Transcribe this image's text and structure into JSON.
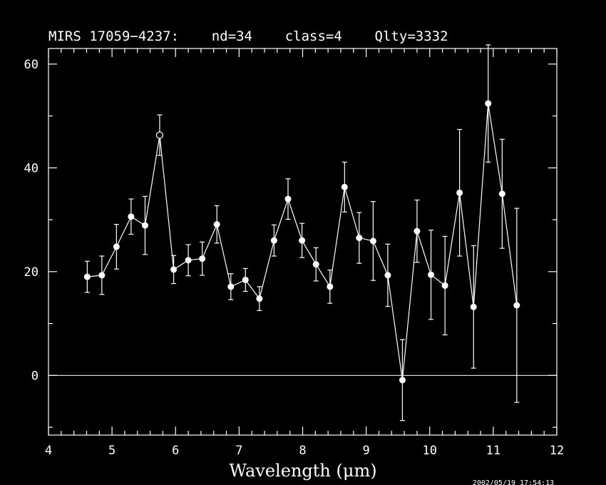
{
  "chart_data": {
    "type": "scatter",
    "title": "MIRS 17059−4237:    nd=34    class=4    Qlty=3332",
    "xlabel": "Wavelength (μm)",
    "ylabel": "",
    "xlim": [
      4,
      12
    ],
    "ylim": [
      -11.5,
      63
    ],
    "x_ticks": [
      4,
      5,
      6,
      7,
      8,
      9,
      10,
      11,
      12
    ],
    "y_ticks": [
      0,
      20,
      40,
      60
    ],
    "zero_line": true,
    "grid": false,
    "timestamp": "2002/05/19 17:54:13",
    "colors": {
      "background": "#000000",
      "foreground": "#ffffff"
    },
    "series": [
      {
        "points": [
          {
            "x": 4.61,
            "y": 19.0,
            "err": 3.0
          },
          {
            "x": 4.84,
            "y": 19.3,
            "err": 3.7
          },
          {
            "x": 5.07,
            "y": 24.8,
            "err": 4.3
          },
          {
            "x": 5.3,
            "y": 30.6,
            "err": 3.4
          },
          {
            "x": 5.52,
            "y": 28.9,
            "err": 5.6
          },
          {
            "x": 5.75,
            "y": 46.3,
            "err": 3.9,
            "hollow": true
          },
          {
            "x": 5.97,
            "y": 20.4,
            "err": 2.7
          },
          {
            "x": 6.2,
            "y": 22.2,
            "err": 3.0
          },
          {
            "x": 6.42,
            "y": 22.5,
            "err": 3.2
          },
          {
            "x": 6.65,
            "y": 29.1,
            "err": 3.6
          },
          {
            "x": 6.87,
            "y": 17.1,
            "err": 2.5
          },
          {
            "x": 7.1,
            "y": 18.4,
            "err": 2.2
          },
          {
            "x": 7.32,
            "y": 14.8,
            "err": 2.3
          },
          {
            "x": 7.55,
            "y": 26.0,
            "err": 3.0
          },
          {
            "x": 7.77,
            "y": 34.0,
            "err": 3.9
          },
          {
            "x": 7.99,
            "y": 26.0,
            "err": 3.3
          },
          {
            "x": 8.21,
            "y": 21.4,
            "err": 3.2
          },
          {
            "x": 8.43,
            "y": 17.1,
            "err": 3.2
          },
          {
            "x": 8.66,
            "y": 36.3,
            "err": 4.8
          },
          {
            "x": 8.89,
            "y": 26.5,
            "err": 4.9
          },
          {
            "x": 9.11,
            "y": 25.9,
            "err": 7.6
          },
          {
            "x": 9.34,
            "y": 19.3,
            "err": 6.0
          },
          {
            "x": 9.57,
            "y": -0.9,
            "err": 7.8
          },
          {
            "x": 9.8,
            "y": 27.8,
            "err": 6.0
          },
          {
            "x": 10.02,
            "y": 19.4,
            "err": 8.6
          },
          {
            "x": 10.24,
            "y": 17.3,
            "err": 9.5
          },
          {
            "x": 10.47,
            "y": 35.2,
            "err": 12.2
          },
          {
            "x": 10.69,
            "y": 13.2,
            "err": 11.8
          },
          {
            "x": 10.92,
            "y": 52.4,
            "err": 11.3
          },
          {
            "x": 11.14,
            "y": 35.0,
            "err": 10.5
          },
          {
            "x": 11.37,
            "y": 13.5,
            "err": 18.7
          }
        ]
      }
    ]
  }
}
